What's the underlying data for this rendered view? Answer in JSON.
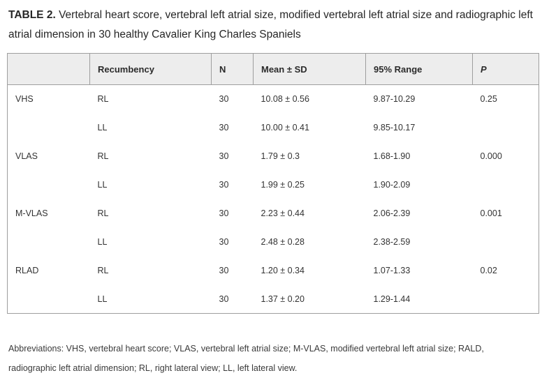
{
  "title": {
    "label": "TABLE 2.",
    "text": "Vertebral heart score, vertebral left atrial size, modified vertebral left atrial size and radiographic left atrial dimension in 30 healthy Cavalier King Charles Spaniels"
  },
  "table": {
    "columns": [
      "",
      "Recumbency",
      "N",
      "Mean ± SD",
      "95% Range",
      "P"
    ],
    "rows": [
      {
        "measure": "VHS",
        "recumbency": "RL",
        "n": "30",
        "mean_sd": "10.08 ± 0.56",
        "range95": "9.87-10.29",
        "p": "0.25"
      },
      {
        "measure": "",
        "recumbency": "LL",
        "n": "30",
        "mean_sd": "10.00 ± 0.41",
        "range95": "9.85-10.17",
        "p": ""
      },
      {
        "measure": "VLAS",
        "recumbency": "RL",
        "n": "30",
        "mean_sd": "1.79 ± 0.3",
        "range95": "1.68-1.90",
        "p": "0.000"
      },
      {
        "measure": "",
        "recumbency": "LL",
        "n": "30",
        "mean_sd": "1.99 ± 0.25",
        "range95": "1.90-2.09",
        "p": ""
      },
      {
        "measure": "M-VLAS",
        "recumbency": "RL",
        "n": "30",
        "mean_sd": "2.23 ± 0.44",
        "range95": "2.06-2.39",
        "p": "0.001"
      },
      {
        "measure": "",
        "recumbency": "LL",
        "n": "30",
        "mean_sd": "2.48 ± 0.28",
        "range95": "2.38-2.59",
        "p": ""
      },
      {
        "measure": "RLAD",
        "recumbency": "RL",
        "n": "30",
        "mean_sd": "1.20 ± 0.34",
        "range95": "1.07-1.33",
        "p": "0.02"
      },
      {
        "measure": "",
        "recumbency": "LL",
        "n": "30",
        "mean_sd": "1.37 ± 0.20",
        "range95": "1.29-1.44",
        "p": ""
      }
    ]
  },
  "footnote": "Abbreviations: VHS, vertebral heart score; VLAS, vertebral left atrial size; M-VLAS, modified vertebral left atrial size; RALD, radiographic left atrial dimension; RL, right lateral view; LL, left lateral view.",
  "colors": {
    "header_bg": "#ededed",
    "border": "#9e9e9e",
    "body_text": "#333333",
    "title_text": "#262626"
  }
}
